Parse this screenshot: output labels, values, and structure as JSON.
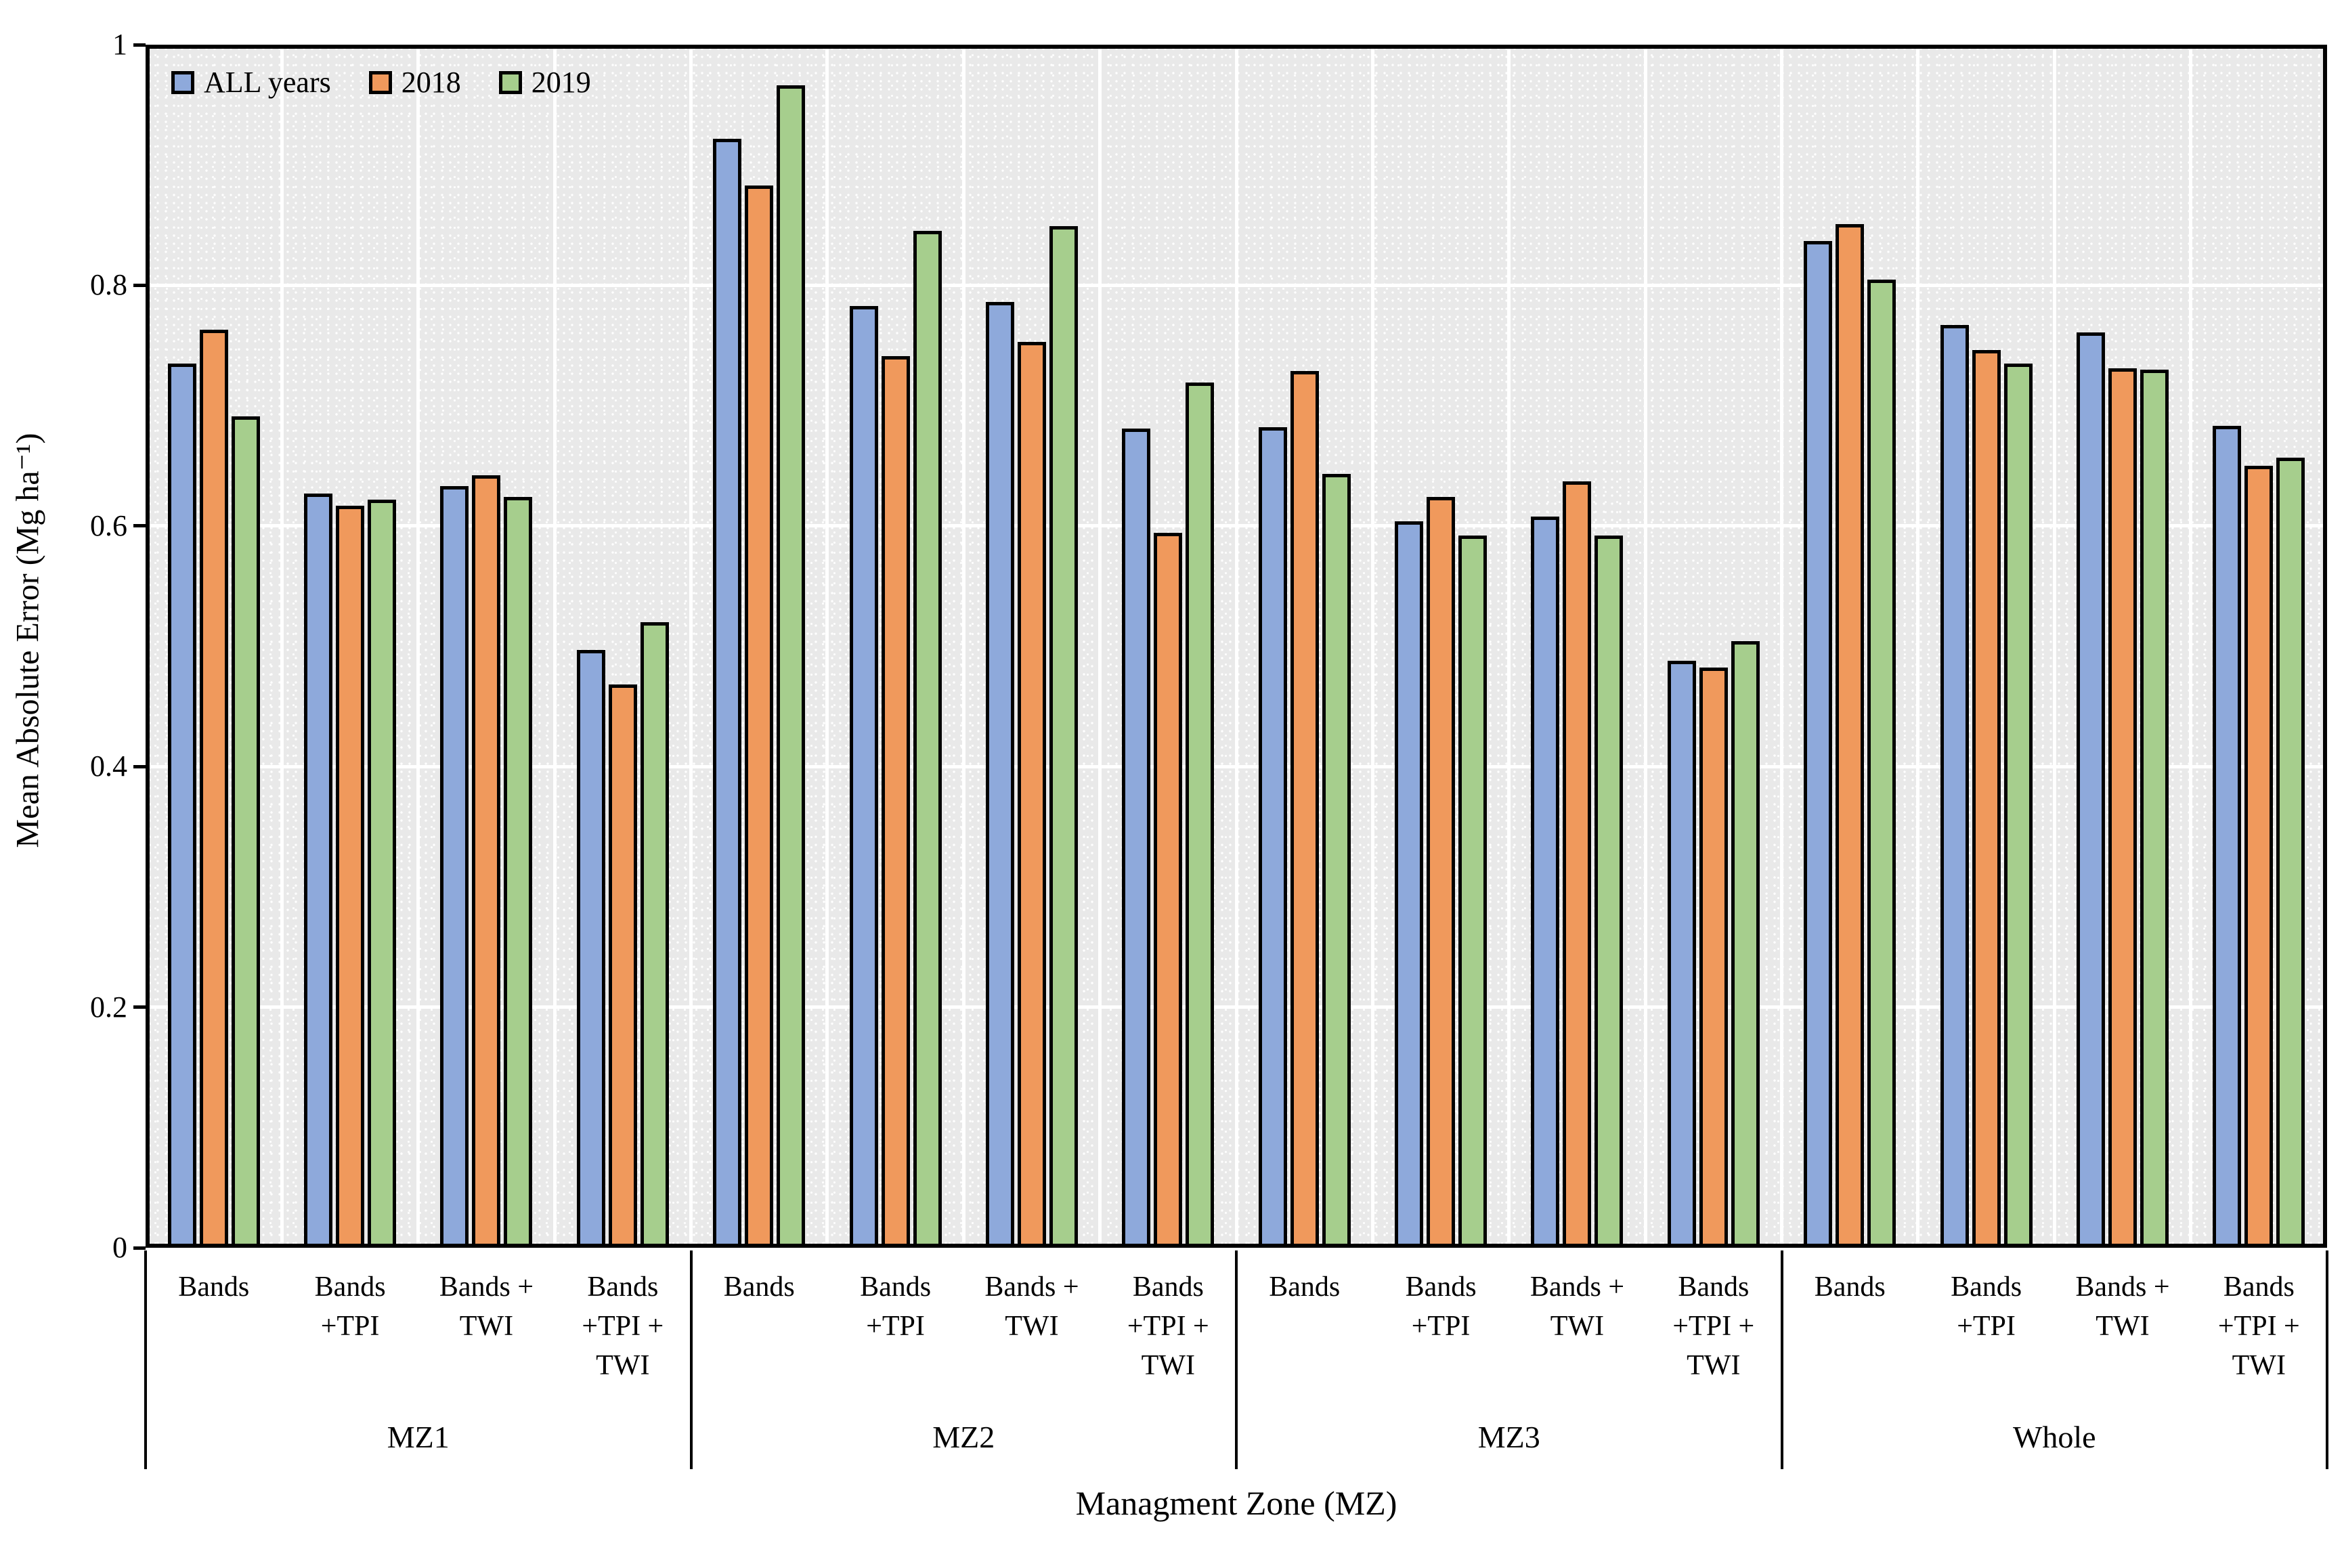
{
  "y_axis": {
    "title": "Mean Absolute Error (Mg ha⁻¹)",
    "tick_labels": [
      "1",
      "0.8",
      "0.6",
      "0.4",
      "0.2",
      "0"
    ],
    "tick_values": [
      1,
      0.8,
      0.6,
      0.4,
      0.2,
      0
    ]
  },
  "x_axis": {
    "title": "Managment Zone (MZ)"
  },
  "legend": [
    {
      "label": "ALL years",
      "color": "#8EA9DB"
    },
    {
      "label": "2018",
      "color": "#F0995C"
    },
    {
      "label": "2019",
      "color": "#A6CE8D"
    }
  ],
  "colors": {
    "plot_background": "#E9E9E9",
    "grid": "#FFFFFF",
    "bar_outline": "#000000",
    "series_blue": "#8EA9DB",
    "series_orange": "#F0995C",
    "series_green": "#A6CE8D"
  },
  "chart_data": {
    "type": "bar",
    "title": "",
    "xlabel": "Managment Zone (MZ)",
    "ylabel": "Mean Absolute Error (Mg ha⁻¹)",
    "ylim": [
      0,
      1
    ],
    "ytick_step": 0.2,
    "grid": "on",
    "legend_position": "top-left-inside",
    "groups": [
      "MZ1",
      "MZ2",
      "MZ3",
      "Whole"
    ],
    "categories": [
      "Bands",
      "Bands +TPI",
      "Bands + TWI",
      "Bands +TPI + TWI"
    ],
    "category_label_lines": [
      [
        "Bands"
      ],
      [
        "Bands",
        "+TPI"
      ],
      [
        "Bands +",
        "TWI"
      ],
      [
        "Bands",
        "+TPI +",
        "TWI"
      ]
    ],
    "series": [
      {
        "name": "ALL years",
        "color": "#8EA9DB",
        "values": [
          0.735,
          0.627,
          0.633,
          0.497,
          0.922,
          0.783,
          0.786,
          0.681,
          0.682,
          0.604,
          0.608,
          0.488,
          0.837,
          0.767,
          0.761,
          0.683
        ]
      },
      {
        "name": "2018",
        "color": "#F0995C",
        "values": [
          0.763,
          0.617,
          0.642,
          0.468,
          0.883,
          0.741,
          0.753,
          0.594,
          0.729,
          0.624,
          0.637,
          0.482,
          0.851,
          0.746,
          0.731,
          0.65
        ]
      },
      {
        "name": "2019",
        "color": "#A6CE8D",
        "values": [
          0.691,
          0.622,
          0.624,
          0.52,
          0.966,
          0.845,
          0.849,
          0.719,
          0.643,
          0.592,
          0.592,
          0.504,
          0.805,
          0.735,
          0.73,
          0.657
        ]
      }
    ]
  }
}
